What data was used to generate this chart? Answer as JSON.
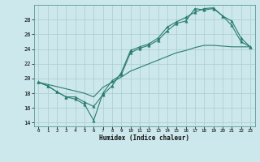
{
  "xlabel": "Humidex (Indice chaleur)",
  "bg_color": "#cce8ec",
  "grid_color": "#aacccc",
  "line_color": "#2a7d6e",
  "xlim": [
    -0.5,
    23.5
  ],
  "ylim": [
    13.5,
    30
  ],
  "xticks": [
    0,
    1,
    2,
    3,
    4,
    5,
    6,
    7,
    8,
    9,
    10,
    11,
    12,
    13,
    14,
    15,
    16,
    17,
    18,
    19,
    20,
    21,
    22,
    23
  ],
  "yticks": [
    14,
    16,
    18,
    20,
    22,
    24,
    26,
    28
  ],
  "line1_x": [
    0,
    1,
    2,
    3,
    4,
    5,
    6,
    7,
    8,
    9,
    10,
    11,
    12,
    13,
    14,
    15,
    16,
    17,
    18,
    19,
    20,
    21,
    22,
    23
  ],
  "line1_y": [
    19.5,
    19.0,
    18.2,
    17.5,
    17.2,
    16.5,
    14.3,
    18.0,
    19.7,
    20.5,
    23.5,
    24.1,
    24.5,
    25.2,
    26.5,
    27.5,
    27.8,
    29.5,
    29.3,
    29.5,
    28.5,
    27.2,
    25.0,
    24.3
  ],
  "line2_x": [
    0,
    1,
    2,
    3,
    4,
    5,
    6,
    7,
    8,
    9,
    10,
    11,
    12,
    13,
    14,
    15,
    16,
    17,
    18,
    19,
    20,
    21,
    22,
    23
  ],
  "line2_y": [
    19.5,
    19.0,
    18.2,
    17.5,
    17.5,
    16.8,
    16.2,
    17.8,
    19.0,
    20.8,
    23.8,
    24.3,
    24.7,
    25.5,
    27.0,
    27.7,
    28.3,
    29.0,
    29.5,
    29.6,
    28.5,
    27.8,
    25.5,
    24.3
  ],
  "line3_x": [
    0,
    1,
    2,
    3,
    4,
    5,
    6,
    7,
    8,
    9,
    10,
    11,
    12,
    13,
    14,
    15,
    16,
    17,
    18,
    19,
    20,
    21,
    22,
    23
  ],
  "line3_y": [
    19.5,
    19.2,
    18.9,
    18.6,
    18.3,
    18.0,
    17.5,
    18.8,
    19.5,
    20.2,
    21.0,
    21.5,
    22.0,
    22.5,
    23.0,
    23.5,
    23.8,
    24.2,
    24.5,
    24.5,
    24.4,
    24.3,
    24.3,
    24.3
  ]
}
